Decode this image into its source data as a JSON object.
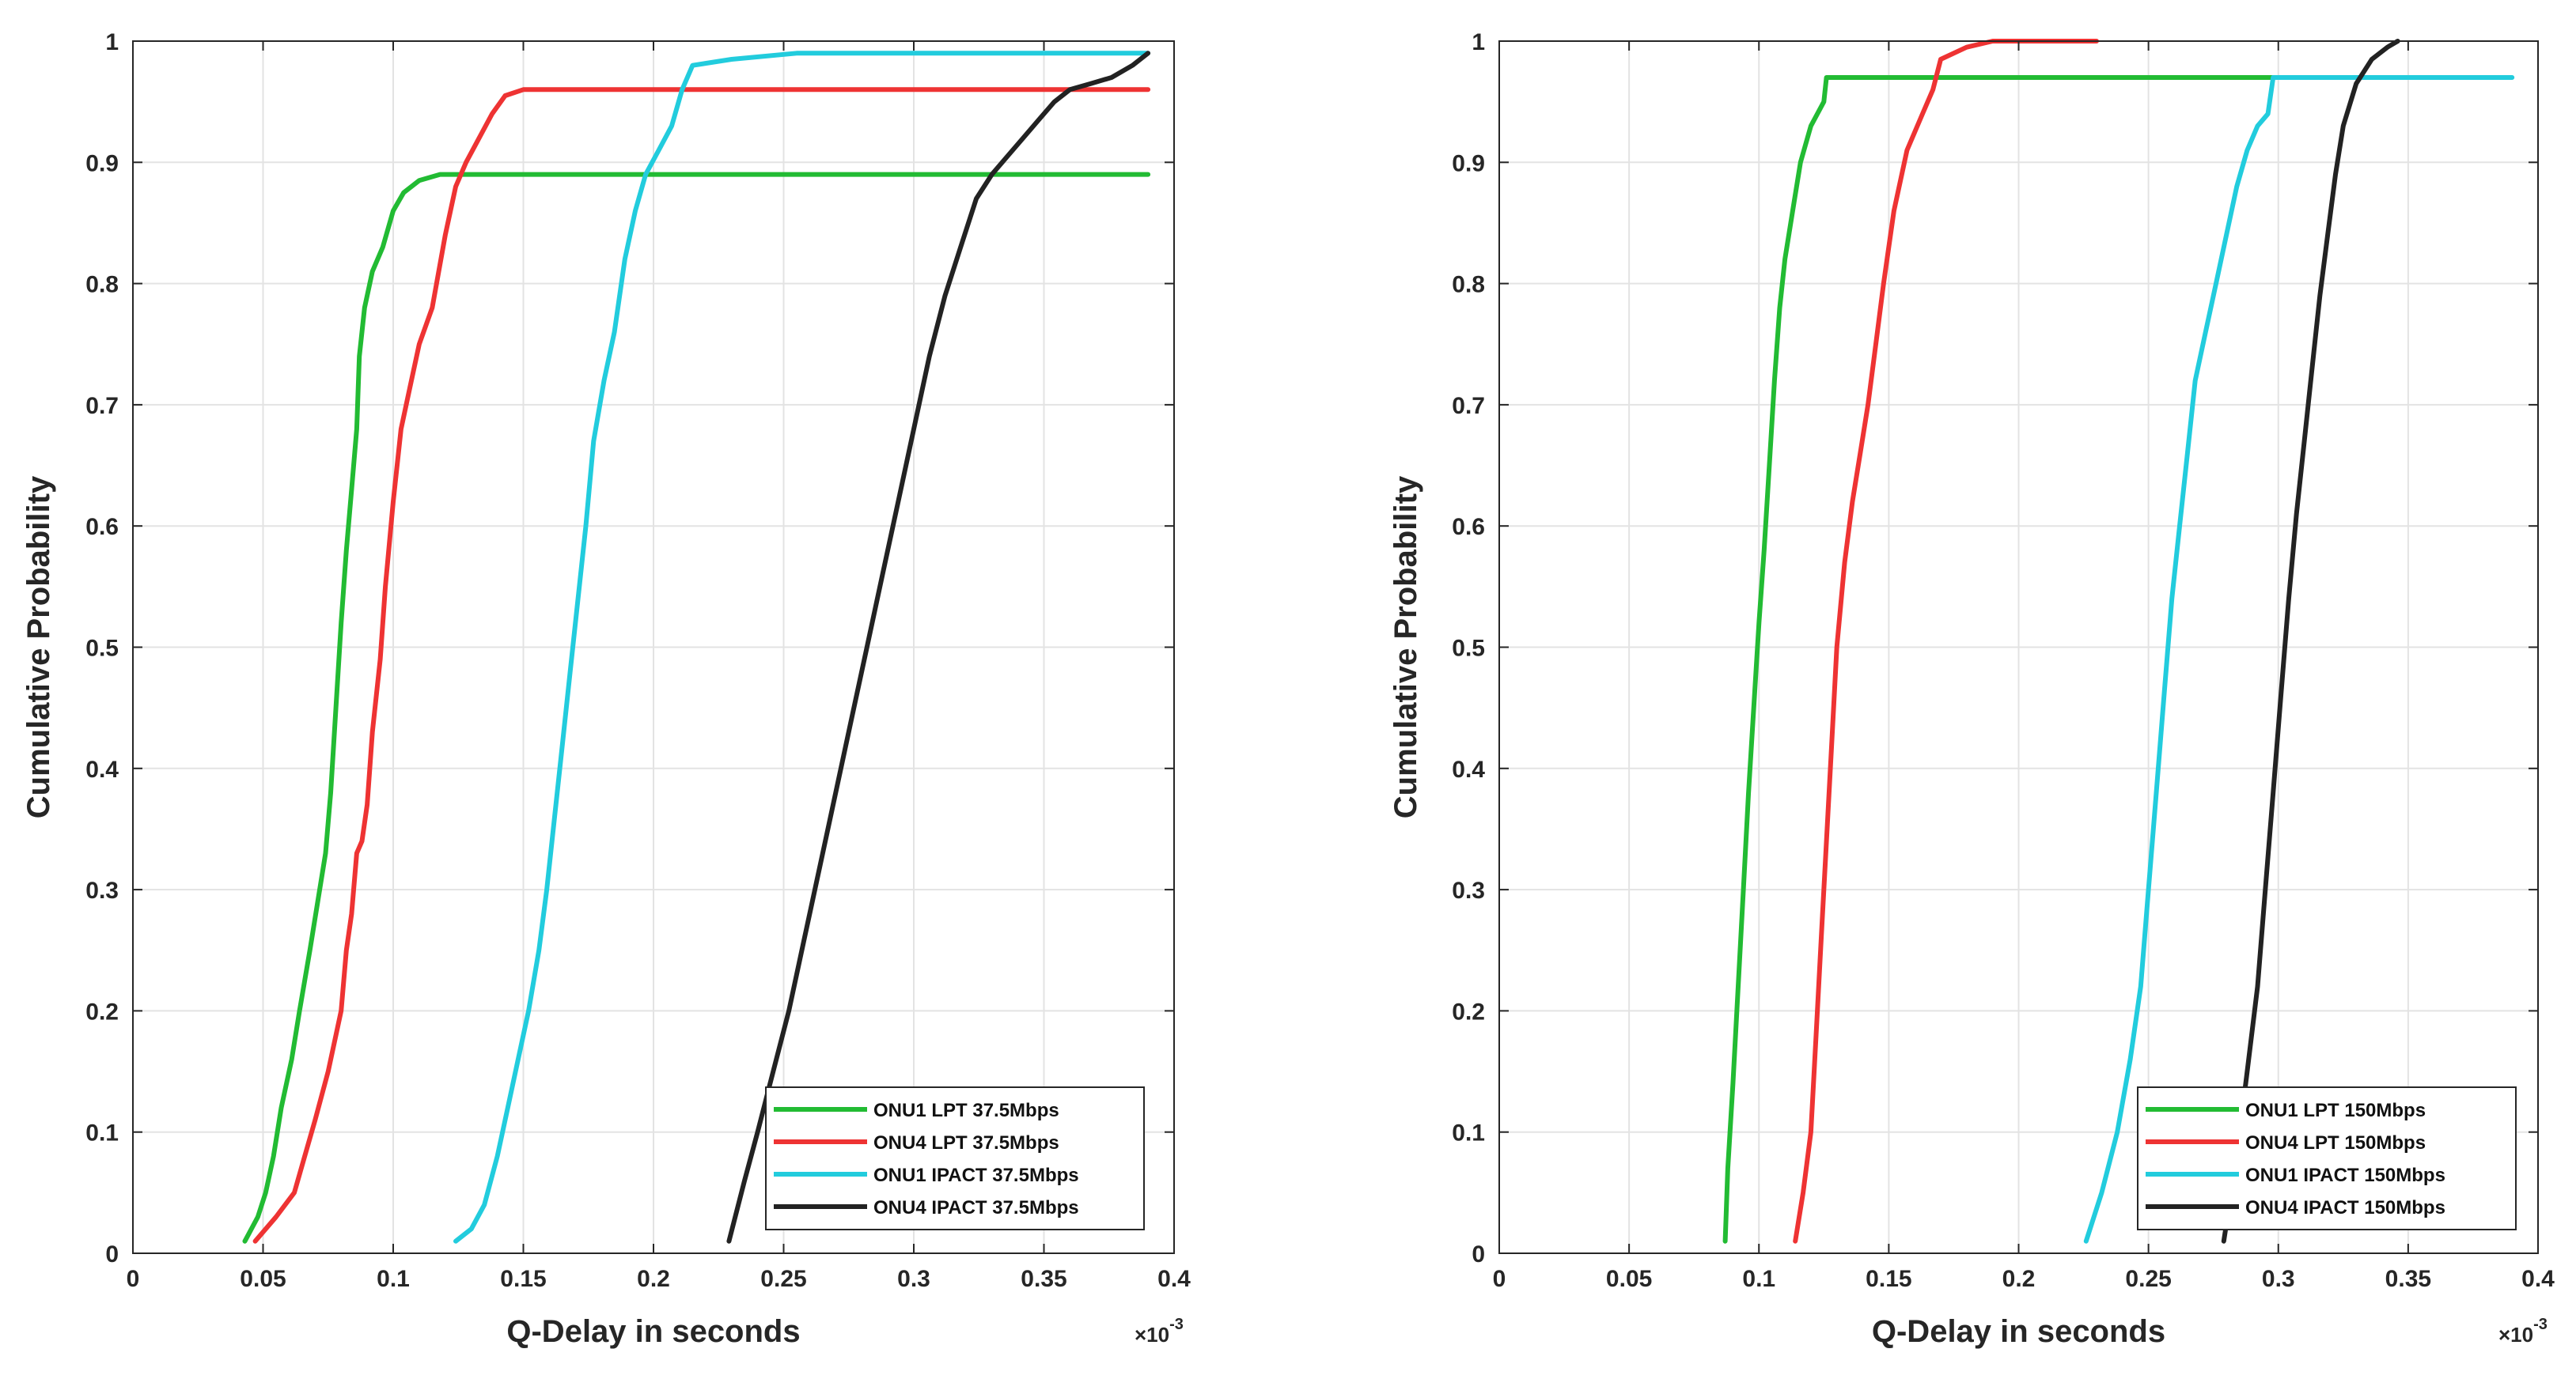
{
  "chart_data": [
    {
      "type": "line",
      "title": "",
      "xlabel": "Q-Delay in seconds",
      "ylabel": "Cumulative Probability",
      "x_exponent": "x10^-3",
      "xlim": [
        0,
        0.4
      ],
      "ylim": [
        0,
        1
      ],
      "x_ticks": [
        "0",
        "0.05",
        "0.1",
        "0.15",
        "0.2",
        "0.25",
        "0.3",
        "0.35",
        "0.4"
      ],
      "y_ticks": [
        "0",
        "0.1",
        "0.2",
        "0.3",
        "0.4",
        "0.5",
        "0.6",
        "0.7",
        "0.8",
        "0.9",
        "1"
      ],
      "grid": true,
      "legend_position": "bottom-right",
      "series": [
        {
          "name": "ONU1 LPT 37.5Mbps",
          "color": "#22bb33",
          "x": [
            0.043,
            0.048,
            0.051,
            0.054,
            0.057,
            0.061,
            0.064,
            0.068,
            0.071,
            0.074,
            0.076,
            0.078,
            0.08,
            0.082,
            0.084,
            0.086,
            0.087,
            0.089,
            0.092,
            0.096,
            0.1,
            0.104,
            0.11,
            0.118,
            0.39
          ],
          "y": [
            0.01,
            0.03,
            0.05,
            0.08,
            0.12,
            0.16,
            0.2,
            0.25,
            0.29,
            0.33,
            0.38,
            0.45,
            0.52,
            0.58,
            0.63,
            0.68,
            0.74,
            0.78,
            0.81,
            0.83,
            0.86,
            0.875,
            0.885,
            0.89,
            0.89
          ]
        },
        {
          "name": "ONU4 LPT 37.5Mbps",
          "color": "#ee3333",
          "x": [
            0.047,
            0.055,
            0.062,
            0.066,
            0.07,
            0.075,
            0.08,
            0.082,
            0.084,
            0.086,
            0.088,
            0.09,
            0.092,
            0.095,
            0.097,
            0.1,
            0.103,
            0.107,
            0.11,
            0.115,
            0.12,
            0.124,
            0.128,
            0.133,
            0.138,
            0.143,
            0.15,
            0.39
          ],
          "y": [
            0.01,
            0.03,
            0.05,
            0.08,
            0.11,
            0.15,
            0.2,
            0.25,
            0.28,
            0.33,
            0.34,
            0.37,
            0.43,
            0.49,
            0.55,
            0.62,
            0.68,
            0.72,
            0.75,
            0.78,
            0.84,
            0.88,
            0.9,
            0.92,
            0.94,
            0.955,
            0.96,
            0.96
          ]
        },
        {
          "name": "ONU1 IPACT 37.5Mbps",
          "color": "#22ccdd",
          "x": [
            0.124,
            0.13,
            0.135,
            0.14,
            0.144,
            0.148,
            0.152,
            0.156,
            0.159,
            0.162,
            0.165,
            0.168,
            0.171,
            0.174,
            0.177,
            0.181,
            0.185,
            0.189,
            0.193,
            0.197,
            0.202,
            0.207,
            0.211,
            0.215,
            0.23,
            0.255,
            0.39
          ],
          "y": [
            0.01,
            0.02,
            0.04,
            0.08,
            0.12,
            0.16,
            0.2,
            0.25,
            0.3,
            0.36,
            0.42,
            0.48,
            0.54,
            0.6,
            0.67,
            0.72,
            0.76,
            0.82,
            0.86,
            0.89,
            0.91,
            0.93,
            0.96,
            0.98,
            0.985,
            0.99,
            0.99
          ]
        },
        {
          "name": "ONU4 IPACT 37.5Mbps",
          "color": "#222222",
          "x": [
            0.229,
            0.235,
            0.24,
            0.246,
            0.252,
            0.258,
            0.264,
            0.27,
            0.276,
            0.282,
            0.288,
            0.294,
            0.3,
            0.306,
            0.312,
            0.318,
            0.324,
            0.33,
            0.336,
            0.342,
            0.348,
            0.354,
            0.36,
            0.368,
            0.376,
            0.384,
            0.39
          ],
          "y": [
            0.01,
            0.06,
            0.1,
            0.15,
            0.2,
            0.26,
            0.32,
            0.38,
            0.44,
            0.5,
            0.56,
            0.62,
            0.68,
            0.74,
            0.79,
            0.83,
            0.87,
            0.89,
            0.905,
            0.92,
            0.935,
            0.95,
            0.96,
            0.965,
            0.97,
            0.98,
            0.99
          ]
        }
      ],
      "legend": [
        "ONU1 LPT 37.5Mbps",
        "ONU4 LPT 37.5Mbps",
        "ONU1 IPACT 37.5Mbps",
        "ONU4 IPACT 37.5Mbps"
      ]
    },
    {
      "type": "line",
      "title": "",
      "xlabel": "Q-Delay in seconds",
      "ylabel": "Cumulative Probability",
      "x_exponent": "x10^-3",
      "xlim": [
        0,
        0.4
      ],
      "ylim": [
        0,
        1
      ],
      "x_ticks": [
        "0",
        "0.05",
        "0.1",
        "0.15",
        "0.2",
        "0.25",
        "0.3",
        "0.35",
        "0.4"
      ],
      "y_ticks": [
        "0",
        "0.1",
        "0.2",
        "0.3",
        "0.4",
        "0.5",
        "0.6",
        "0.7",
        "0.8",
        "0.9",
        "1"
      ],
      "grid": true,
      "legend_position": "bottom-right",
      "series": [
        {
          "name": "ONU1 LPT 150Mbps",
          "color": "#22bb33",
          "x": [
            0.087,
            0.088,
            0.09,
            0.092,
            0.094,
            0.096,
            0.098,
            0.1,
            0.102,
            0.104,
            0.106,
            0.108,
            0.11,
            0.113,
            0.116,
            0.12,
            0.125,
            0.126,
            0.3
          ],
          "y": [
            0.01,
            0.07,
            0.14,
            0.22,
            0.3,
            0.38,
            0.45,
            0.52,
            0.58,
            0.65,
            0.72,
            0.78,
            0.82,
            0.86,
            0.9,
            0.93,
            0.95,
            0.97,
            0.97
          ]
        },
        {
          "name": "ONU4 LPT 150Mbps",
          "color": "#ee3333",
          "x": [
            0.114,
            0.117,
            0.12,
            0.122,
            0.124,
            0.126,
            0.128,
            0.13,
            0.133,
            0.136,
            0.139,
            0.142,
            0.145,
            0.148,
            0.152,
            0.157,
            0.163,
            0.167,
            0.17,
            0.18,
            0.19,
            0.2,
            0.23
          ],
          "y": [
            0.01,
            0.05,
            0.1,
            0.18,
            0.26,
            0.34,
            0.42,
            0.5,
            0.57,
            0.62,
            0.66,
            0.7,
            0.75,
            0.8,
            0.86,
            0.91,
            0.94,
            0.96,
            0.985,
            0.995,
            1.0,
            1.0,
            1.0
          ]
        },
        {
          "name": "ONU1 IPACT 150Mbps",
          "color": "#22ccdd",
          "x": [
            0.226,
            0.232,
            0.238,
            0.243,
            0.247,
            0.25,
            0.253,
            0.256,
            0.259,
            0.262,
            0.265,
            0.268,
            0.272,
            0.276,
            0.28,
            0.284,
            0.288,
            0.292,
            0.296,
            0.298,
            0.39
          ],
          "y": [
            0.01,
            0.05,
            0.1,
            0.16,
            0.22,
            0.3,
            0.38,
            0.46,
            0.54,
            0.6,
            0.66,
            0.72,
            0.76,
            0.8,
            0.84,
            0.88,
            0.91,
            0.93,
            0.94,
            0.97,
            0.97
          ]
        },
        {
          "name": "ONU4 IPACT 150Mbps",
          "color": "#222222",
          "x": [
            0.279,
            0.284,
            0.288,
            0.292,
            0.295,
            0.298,
            0.301,
            0.304,
            0.307,
            0.31,
            0.313,
            0.316,
            0.319,
            0.322,
            0.325,
            0.33,
            0.336,
            0.342,
            0.346
          ],
          "y": [
            0.01,
            0.08,
            0.15,
            0.22,
            0.3,
            0.38,
            0.46,
            0.54,
            0.61,
            0.67,
            0.73,
            0.79,
            0.84,
            0.89,
            0.93,
            0.965,
            0.985,
            0.995,
            1.0
          ]
        }
      ],
      "legend": [
        "ONU1 LPT 150Mbps",
        "ONU4 LPT 150Mbps",
        "ONU1 IPACT 150Mbps",
        "ONU4 IPACT 150Mbps"
      ]
    }
  ]
}
